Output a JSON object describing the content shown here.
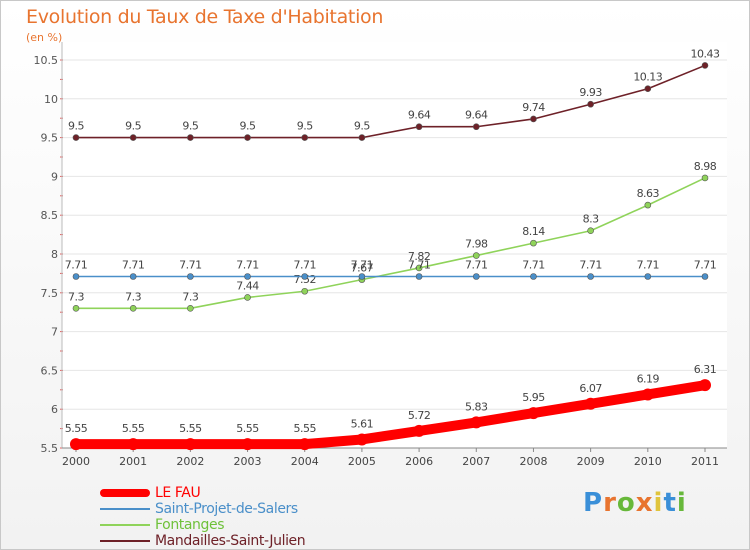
{
  "header": {
    "title": "Evolution du Taux de Taxe d'Habitation",
    "subtitle": "(en %)"
  },
  "logo": {
    "text": "Proxiti",
    "colors": [
      "#3a8fd8",
      "#e8742f",
      "#67b83a",
      "#e8742f",
      "#e0c43c",
      "#3a8fd8",
      "#67b83a"
    ]
  },
  "chart_data": {
    "type": "line",
    "x": [
      "2000",
      "2001",
      "2002",
      "2003",
      "2004",
      "2005",
      "2006",
      "2007",
      "2008",
      "2009",
      "2010",
      "2011"
    ],
    "ylim": [
      5.5,
      10.5
    ],
    "yticks": [
      "5.5",
      "6",
      "6.5",
      "7",
      "7.5",
      "8",
      "8.5",
      "9",
      "9.5",
      "10",
      "10.5"
    ],
    "grid": "horizontal",
    "legend_position": "bottom-left",
    "series": [
      {
        "name": "LE FAU",
        "color": "#ff0000",
        "values": [
          5.55,
          5.55,
          5.55,
          5.55,
          5.55,
          5.61,
          5.72,
          5.83,
          5.95,
          6.07,
          6.19,
          6.31
        ],
        "labels": [
          "5.55",
          "5.55",
          "5.55",
          "5.55",
          "5.55",
          "5.61",
          "5.72",
          "5.83",
          "5.95",
          "6.07",
          "6.19",
          "6.31"
        ]
      },
      {
        "name": "Saint-Projet-de-Salers",
        "color": "#4a8fc9",
        "values": [
          7.71,
          7.71,
          7.71,
          7.71,
          7.71,
          7.71,
          7.71,
          7.71,
          7.71,
          7.71,
          7.71,
          7.71
        ],
        "labels": [
          "7.71",
          "7.71",
          "7.71",
          "7.71",
          "7.71",
          "7.71",
          "7.71",
          "7.71",
          "7.71",
          "7.71",
          "7.71",
          "7.71"
        ]
      },
      {
        "name": "Fontanges",
        "color": "#8fd35a",
        "values": [
          7.3,
          7.3,
          7.3,
          7.44,
          7.52,
          7.67,
          7.82,
          7.98,
          8.14,
          8.3,
          8.63,
          8.98
        ],
        "labels": [
          "7.3",
          "7.3",
          "7.3",
          "7.44",
          "7.52",
          "7.67",
          "7.82",
          "7.98",
          "8.14",
          "8.3",
          "8.63",
          "8.98"
        ]
      },
      {
        "name": "Mandailles-Saint-Julien",
        "color": "#6e2128",
        "values": [
          9.5,
          9.5,
          9.5,
          9.5,
          9.5,
          9.5,
          9.64,
          9.64,
          9.74,
          9.93,
          10.13,
          10.43
        ],
        "labels": [
          "9.5",
          "9.5",
          "9.5",
          "9.5",
          "9.5",
          "9.5",
          "9.64",
          "9.64",
          "9.74",
          "9.93",
          "10.13",
          "10.43"
        ]
      }
    ]
  }
}
